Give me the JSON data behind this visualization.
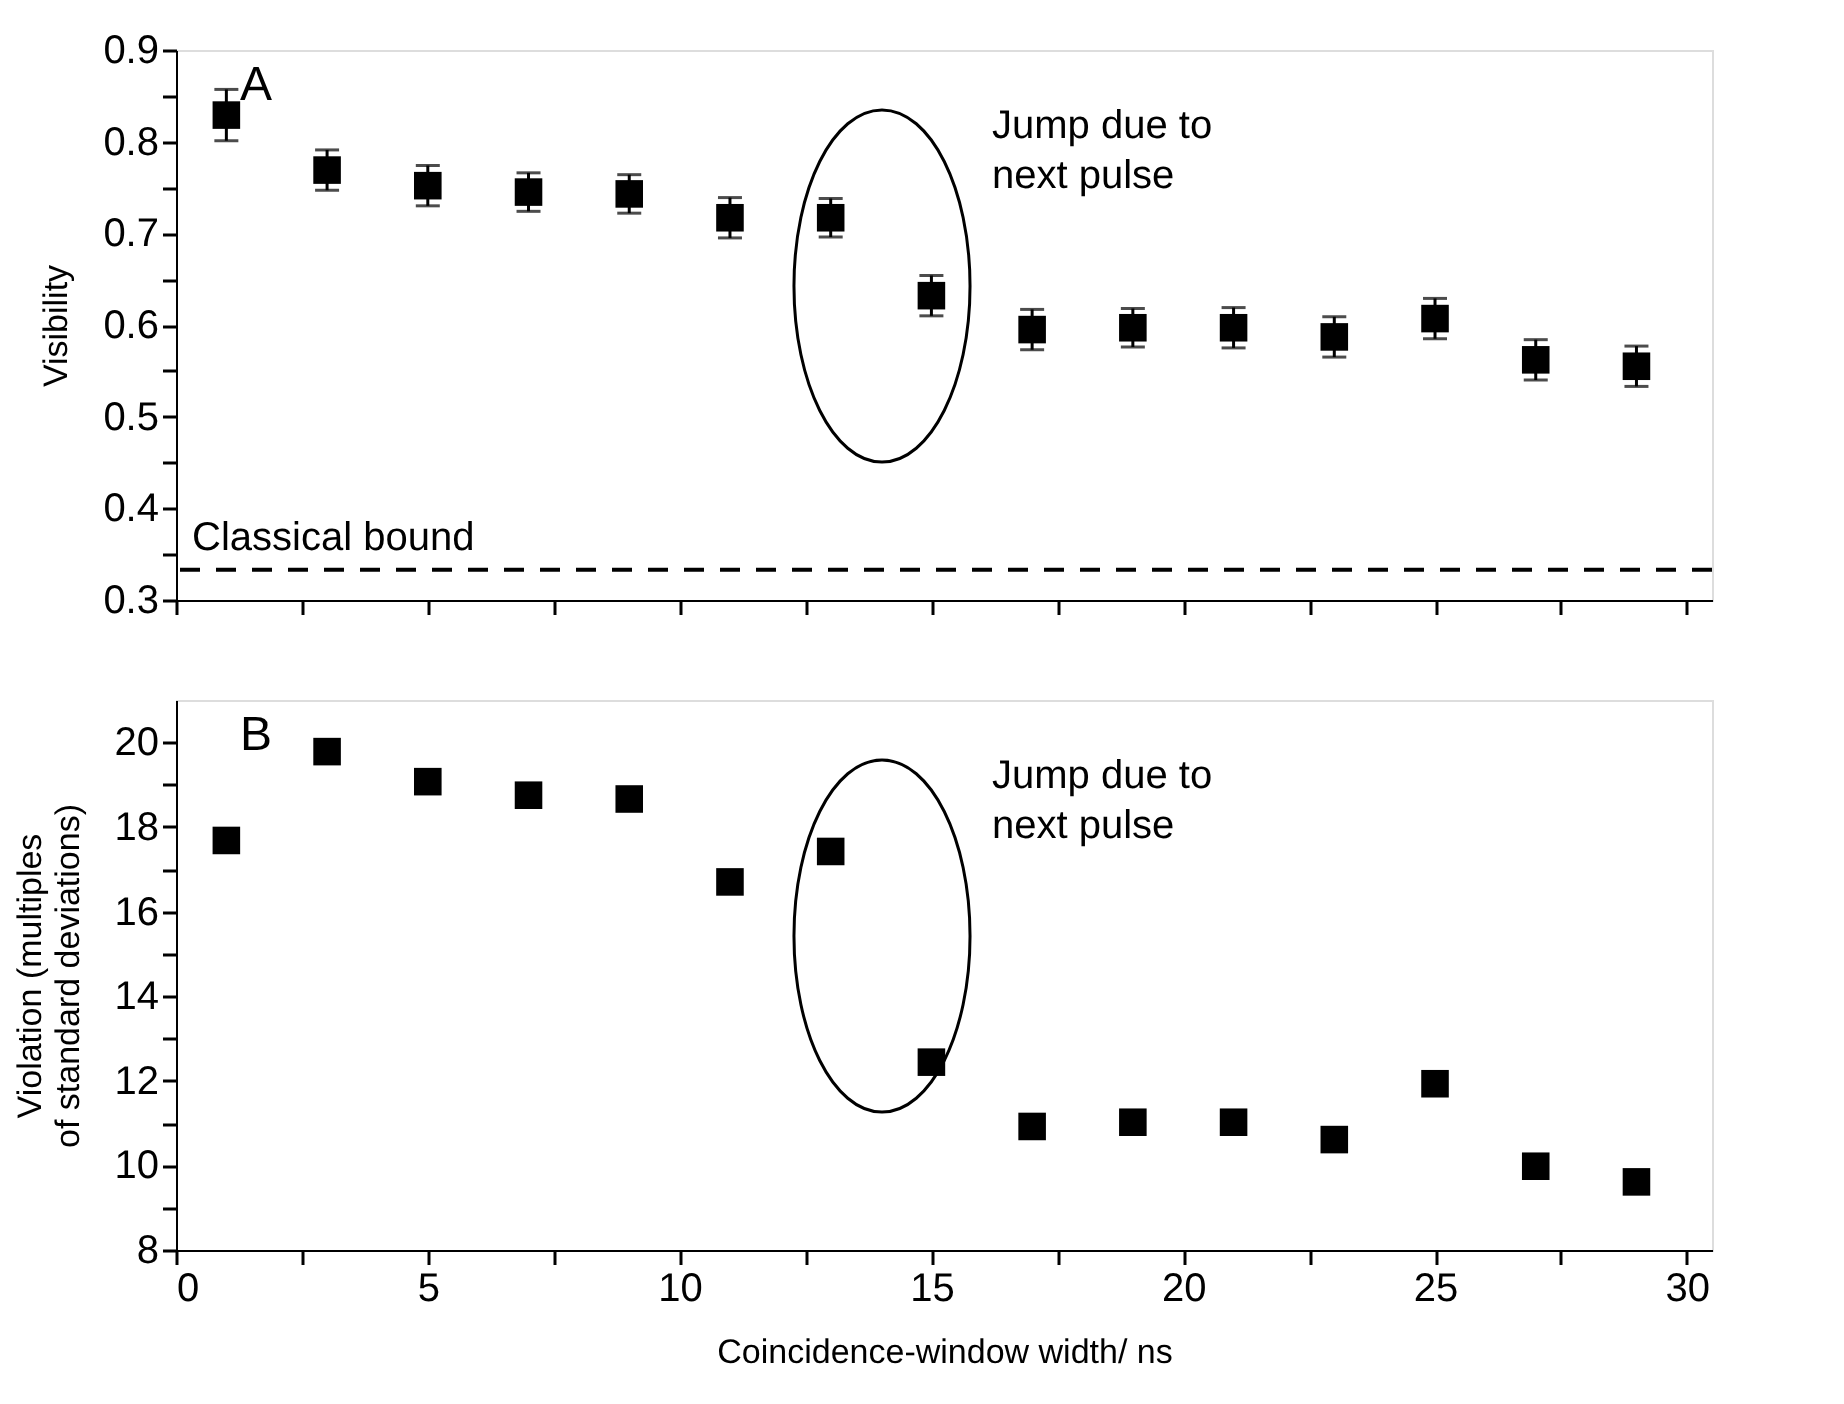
{
  "chart_data": [
    {
      "type": "scatter",
      "ylabel": "Visibility",
      "x": [
        1,
        3,
        5,
        7,
        9,
        11,
        13,
        15,
        17,
        19,
        21,
        23,
        25,
        27,
        29
      ],
      "values": [
        0.829,
        0.769,
        0.752,
        0.745,
        0.743,
        0.717,
        0.717,
        0.632,
        0.595,
        0.597,
        0.597,
        0.587,
        0.607,
        0.562,
        0.555
      ],
      "errors": [
        0.028,
        0.022,
        0.022,
        0.021,
        0.021,
        0.022,
        0.021,
        0.022,
        0.022,
        0.021,
        0.022,
        0.022,
        0.022,
        0.022,
        0.022
      ],
      "color": "#000000",
      "marker": "square",
      "grid": false,
      "tick_labels": "y",
      "xlim": [
        0,
        30.5
      ],
      "ylim": [
        0.3,
        0.9
      ],
      "xticks": [
        0,
        {
          "value": 2.5,
          "label": null
        },
        5,
        {
          "value": 7.5,
          "label": null
        },
        10,
        {
          "value": 12.5,
          "label": null
        },
        15,
        {
          "value": 17.5,
          "label": null
        },
        20,
        {
          "value": 22.5,
          "label": null
        },
        25,
        {
          "value": 27.5,
          "label": null
        },
        30
      ],
      "yticks": [
        0.3,
        {
          "value": 0.35,
          "label": null
        },
        0.4,
        {
          "value": 0.45,
          "label": null
        },
        0.5,
        {
          "value": 0.55,
          "label": null
        },
        0.6,
        {
          "value": 0.65,
          "label": null
        },
        0.7,
        {
          "value": 0.75,
          "label": null
        },
        0.8,
        {
          "value": 0.85,
          "label": null
        },
        0.9
      ],
      "ref_lines": [
        {
          "axis": "y",
          "value": 0.333,
          "label": "Classical bound",
          "line_style": "dashed",
          "color": "#000000"
        }
      ],
      "annotations": [
        "A",
        "Jump due to\nnext pulse"
      ]
    },
    {
      "type": "scatter",
      "ylabel": "Violation (multiples\nof standard deviations)",
      "xlabel": "Coincidence-window width/ ns",
      "x": [
        1,
        3,
        5,
        7,
        9,
        11,
        13,
        15,
        17,
        19,
        21,
        23,
        25,
        27,
        29
      ],
      "values": [
        17.68,
        19.78,
        19.07,
        18.75,
        18.66,
        16.7,
        17.42,
        12.44,
        10.92,
        11.02,
        11.02,
        10.61,
        11.93,
        9.98,
        9.61
      ],
      "color": "#000000",
      "marker": "square",
      "grid": false,
      "xlim": [
        0,
        30.5
      ],
      "ylim": [
        8,
        21
      ],
      "xticks": [
        0,
        {
          "value": 2.5,
          "label": null
        },
        5,
        {
          "value": 7.5,
          "label": null
        },
        10,
        {
          "value": 12.5,
          "label": null
        },
        15,
        {
          "value": 17.5,
          "label": null
        },
        20,
        {
          "value": 22.5,
          "label": null
        },
        25,
        {
          "value": 27.5,
          "label": null
        },
        30
      ],
      "yticks": [
        8,
        {
          "value": 9,
          "label": null
        },
        10,
        {
          "value": 11,
          "label": null
        },
        12,
        {
          "value": 13,
          "label": null
        },
        14,
        {
          "value": 15,
          "label": null
        },
        16,
        {
          "value": 17,
          "label": null
        },
        18,
        {
          "value": 19,
          "label": null
        },
        20
      ],
      "annotations": [
        "B",
        "Jump due to\nnext pulse"
      ]
    }
  ]
}
